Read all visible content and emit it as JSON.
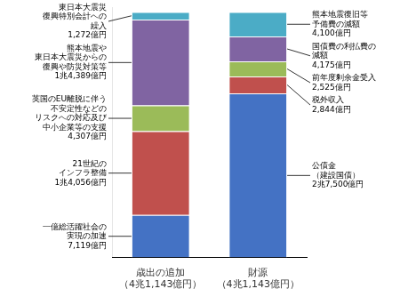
{
  "chart_data": {
    "type": "bar",
    "stacked": true,
    "categories": [
      "歳出の追加\n（4兆1,143億円）",
      "財源\n（4兆1,143億円）"
    ],
    "series": [
      {
        "color": "#4472C4",
        "values": [
          7119,
          27500
        ],
        "annotations": [
          "一億総活躍社会の\n実現の加速\n7,119億円",
          "公債金\n（建設国債）\n2兆7,500億円"
        ]
      },
      {
        "color": "#C0504D",
        "values": [
          14056,
          2844
        ],
        "annotations": [
          "21世紀の\nインフラ整備\n1兆4,056億円",
          "税外収入\n2,844億円"
        ]
      },
      {
        "color": "#9BBB59",
        "values": [
          4307,
          2525
        ],
        "annotations": [
          "英国のEU離脱に伴う\n不安定性などの\nリスクへの対応及び\n中小企業等の支援\n4,307億円",
          "前年度剰余金受入\n2,525億円"
        ]
      },
      {
        "color": "#8064A2",
        "values": [
          14389,
          4175
        ],
        "annotations": [
          "熊本地震や\n東日本大震災からの\n復興や防災対策等\n1兆4,389億円",
          "国債費の利払費の\n減額\n4,175億円"
        ]
      },
      {
        "color": "#4BACC6",
        "values": [
          1272,
          4100
        ],
        "annotations": [
          "東日本大震災\n復興特別会計への\n繰入\n1,272億円",
          "熊本地震復旧等\n予備費の減額\n4,100億円"
        ]
      }
    ],
    "ylim": [
      0,
      41965.86
    ],
    "tick_labels": "x",
    "grid": false
  }
}
